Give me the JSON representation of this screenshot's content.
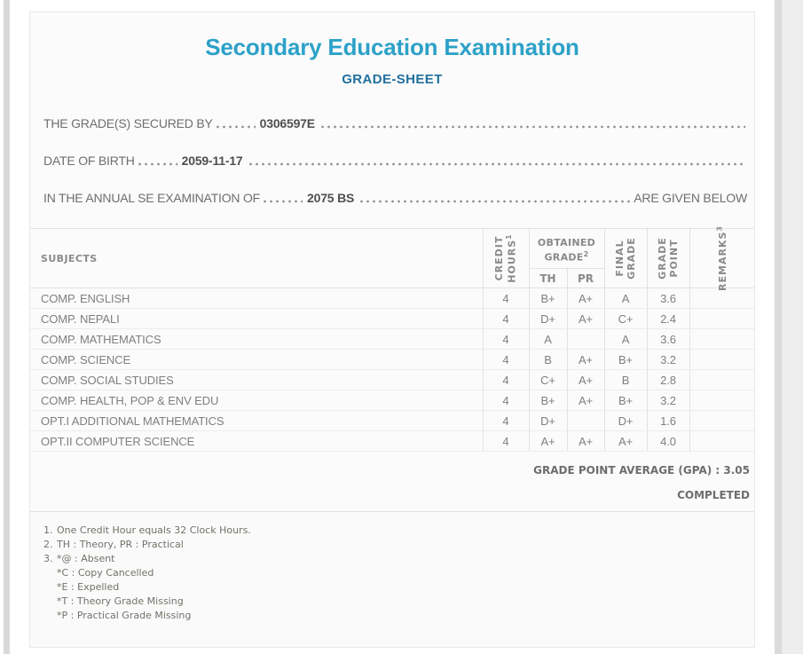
{
  "header": {
    "title": "Secondary Education Examination",
    "subtitle": "GRADE-SHEET"
  },
  "info_lines": [
    {
      "label": "THE GRADE(S) SECURED BY",
      "value": "0306597E",
      "suffix": ""
    },
    {
      "label": "DATE OF BIRTH",
      "value": "2059-11-17",
      "suffix": ""
    },
    {
      "label": "IN THE ANNUAL SE EXAMINATION OF",
      "value": "2075 BS",
      "suffix": "ARE GIVEN BELOW"
    }
  ],
  "table": {
    "headers": {
      "subjects": "SUBJECTS",
      "credit_line1": "CREDIT",
      "credit_line2": "HOURS",
      "credit_sup": "1",
      "obtained_line1": "OBTAINED",
      "obtained_line2": "GRADE",
      "obtained_sup": "2",
      "th": "TH",
      "pr": "PR",
      "final_line1": "FINAL",
      "final_line2": "GRADE",
      "point_line1": "GRADE",
      "point_line2": "POINT",
      "remarks": "REMARKS",
      "remarks_sup": "3"
    },
    "rows": [
      {
        "subject": "COMP. ENGLISH",
        "credit": "4",
        "th": "B+",
        "pr": "A+",
        "final": "A",
        "point": "3.6",
        "remarks": ""
      },
      {
        "subject": "COMP. NEPALI",
        "credit": "4",
        "th": "D+",
        "pr": "A+",
        "final": "C+",
        "point": "2.4",
        "remarks": ""
      },
      {
        "subject": "COMP. MATHEMATICS",
        "credit": "4",
        "th": "A",
        "pr": "",
        "final": "A",
        "point": "3.6",
        "remarks": ""
      },
      {
        "subject": "COMP. SCIENCE",
        "credit": "4",
        "th": "B",
        "pr": "A+",
        "final": "B+",
        "point": "3.2",
        "remarks": ""
      },
      {
        "subject": "COMP. SOCIAL STUDIES",
        "credit": "4",
        "th": "C+",
        "pr": "A+",
        "final": "B",
        "point": "2.8",
        "remarks": ""
      },
      {
        "subject": "COMP. HEALTH, POP & ENV EDU",
        "credit": "4",
        "th": "B+",
        "pr": "A+",
        "final": "B+",
        "point": "3.2",
        "remarks": ""
      },
      {
        "subject": "OPT.I ADDITIONAL MATHEMATICS",
        "credit": "4",
        "th": "D+",
        "pr": "",
        "final": "D+",
        "point": "1.6",
        "remarks": ""
      },
      {
        "subject": "OPT.II COMPUTER SCIENCE",
        "credit": "4",
        "th": "A+",
        "pr": "A+",
        "final": "A+",
        "point": "4.0",
        "remarks": ""
      }
    ]
  },
  "summary": {
    "gpa_label": "GRADE POINT AVERAGE (GPA) :",
    "gpa_value": "3.05",
    "status": "COMPLETED"
  },
  "footnotes": [
    {
      "num": "1.",
      "text": "One Credit Hour equals 32 Clock Hours."
    },
    {
      "num": "2.",
      "text": "TH : Theory, PR : Practical"
    },
    {
      "num": "3.",
      "text": "*@ : Absent",
      "sub": [
        "*C : Copy Cancelled",
        "*E : Expelled",
        "*T : Theory Grade Missing",
        "*P : Practical Grade Missing"
      ]
    }
  ]
}
